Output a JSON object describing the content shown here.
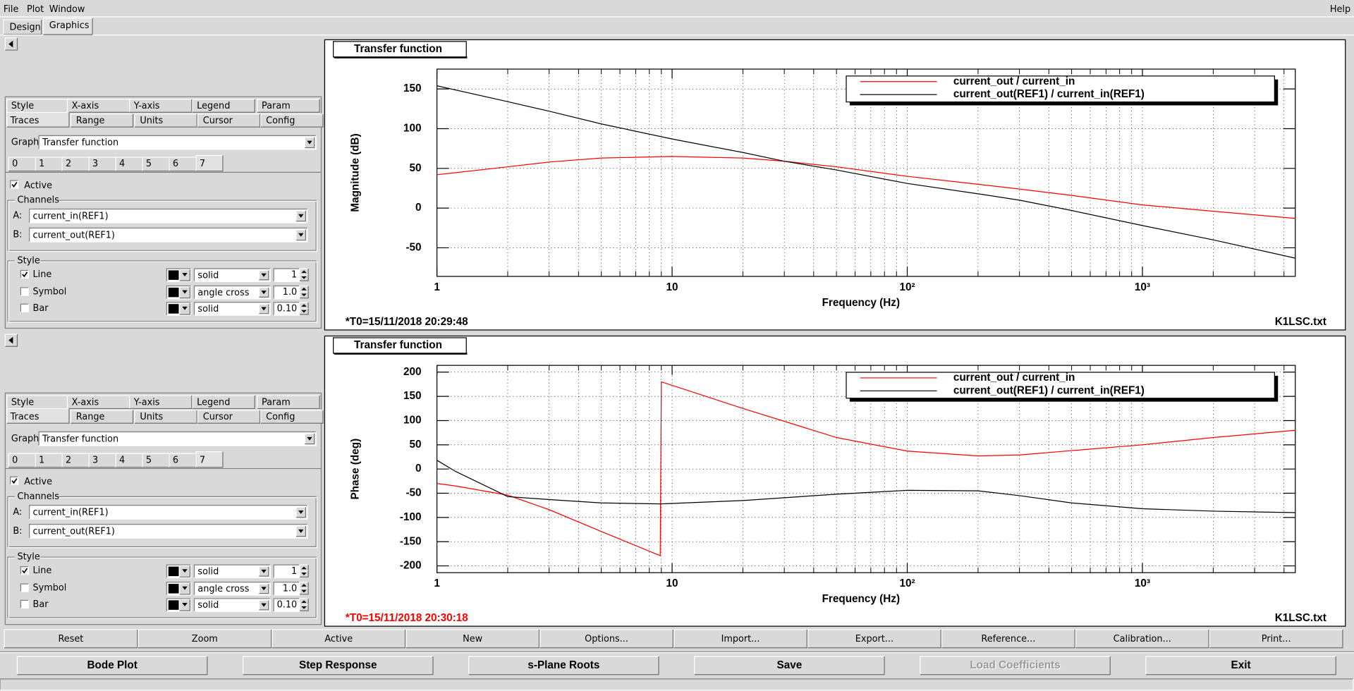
{
  "ui": {
    "menu": [
      "File",
      "Plot",
      "Window"
    ],
    "help": "Help",
    "main_tabs": [
      "Design",
      "Graphics"
    ],
    "panels": [
      {
        "tabs_row1": [
          "Style",
          "X-axis",
          "Y-axis",
          "Legend",
          "Param"
        ],
        "tabs_row2": [
          "Traces",
          "Range",
          "Units",
          "Cursor",
          "Config"
        ],
        "graph_label": "Graph:",
        "graph": "Transfer function",
        "trace_tabs": [
          "0",
          "1",
          "2",
          "3",
          "4",
          "5",
          "6",
          "7"
        ],
        "active": {
          "label": "Active",
          "checked": true
        },
        "channels_label": "Channels",
        "channels": [
          {
            "label": "A:",
            "value": "current_in(REF1)"
          },
          {
            "label": "B:",
            "value": "current_out(REF1)"
          }
        ],
        "style_label": "Style",
        "styles": [
          {
            "name": "Line",
            "checked": true,
            "kind": "solid",
            "value": "1"
          },
          {
            "name": "Symbol",
            "checked": false,
            "kind": "angle cross",
            "value": "1.0"
          },
          {
            "name": "Bar",
            "checked": false,
            "kind": "solid",
            "value": "0.10"
          }
        ]
      },
      {
        "tabs_row1": [
          "Style",
          "X-axis",
          "Y-axis",
          "Legend",
          "Param"
        ],
        "tabs_row2": [
          "Traces",
          "Range",
          "Units",
          "Cursor",
          "Config"
        ],
        "graph_label": "Graph:",
        "graph": "Transfer function",
        "trace_tabs": [
          "0",
          "1",
          "2",
          "3",
          "4",
          "5",
          "6",
          "7"
        ],
        "active": {
          "label": "Active",
          "checked": true
        },
        "channels_label": "Channels",
        "channels": [
          {
            "label": "A:",
            "value": "current_in(REF1)"
          },
          {
            "label": "B:",
            "value": "current_out(REF1)"
          }
        ],
        "style_label": "Style",
        "styles": [
          {
            "name": "Line",
            "checked": true,
            "kind": "solid",
            "value": "1"
          },
          {
            "name": "Symbol",
            "checked": false,
            "kind": "angle cross",
            "value": "1.0"
          },
          {
            "name": "Bar",
            "checked": false,
            "kind": "solid",
            "value": "0.10"
          }
        ]
      }
    ],
    "toolbar": [
      "Reset",
      "Zoom",
      "Active",
      "New",
      "Options...",
      "Import...",
      "Export...",
      "Reference...",
      "Calibration...",
      "Print..."
    ],
    "actions": [
      {
        "label": "Bode Plot",
        "enabled": true
      },
      {
        "label": "Step Response",
        "enabled": true
      },
      {
        "label": "s-Plane Roots",
        "enabled": true
      },
      {
        "label": "Save",
        "enabled": true
      },
      {
        "label": "Load Coefficients",
        "enabled": false
      },
      {
        "label": "Exit",
        "enabled": true
      }
    ]
  },
  "chart_data": [
    {
      "type": "line",
      "title": "Transfer function",
      "xlabel": "Frequency (Hz)",
      "ylabel": "Magnitude (dB)",
      "log_x": true,
      "grid": true,
      "legend": "upper right",
      "x": [
        1,
        2,
        3,
        5,
        10,
        20,
        30,
        50,
        100,
        200,
        300,
        500,
        1000,
        2000,
        4467
      ],
      "series": [
        {
          "name": "current_out / current_in",
          "color": "#ff0000",
          "values": [
            42,
            52,
            58,
            63,
            65,
            63,
            59,
            52,
            40,
            30,
            24,
            16,
            4,
            -4,
            -13
          ]
        },
        {
          "name": "current_out(REF1) / current_in(REF1)",
          "color": "#000000",
          "values": [
            154,
            134,
            122,
            106,
            87,
            70,
            59,
            48,
            31,
            18,
            10,
            -3,
            -22,
            -40,
            -63
          ]
        }
      ],
      "xlim": [
        1,
        4467
      ],
      "ylim": [
        -86,
        175
      ],
      "xticks": [
        1,
        10,
        {
          "value": 100,
          "label": "10²"
        },
        {
          "value": 1000,
          "label": "10³"
        }
      ],
      "yticks": [
        -50,
        0,
        50,
        100,
        150
      ],
      "annotations": [
        {
          "text": "*T0=15/11/2018 20:29:48",
          "color": "#000000",
          "position": "left"
        },
        {
          "text": "K1LSC.txt",
          "color": "#000000",
          "position": "right"
        }
      ]
    },
    {
      "type": "line",
      "title": "Transfer function",
      "xlabel": "Frequency (Hz)",
      "ylabel": "Phase (deg)",
      "log_x": true,
      "grid": true,
      "legend": "upper right",
      "x": [
        1,
        1.2,
        2,
        3,
        5,
        8.9,
        9,
        20,
        50,
        100,
        200,
        300,
        500,
        1000,
        2000,
        4467
      ],
      "series": [
        {
          "name": "current_out / current_in",
          "color": "#ff0000",
          "values": [
            -30,
            -35,
            -54,
            -84,
            -129,
            -179,
            180,
            125,
            65,
            37,
            27,
            29,
            38,
            50,
            65,
            80
          ]
        },
        {
          "name": "current_out(REF1) / current_in(REF1)",
          "color": "#000000",
          "values": [
            18,
            -5,
            -57,
            -63,
            -70,
            -72,
            -72,
            -65,
            -52,
            -44,
            -45,
            -55,
            -70,
            -82,
            -87,
            -90
          ]
        }
      ],
      "xlim": [
        1,
        4467
      ],
      "ylim": [
        -214,
        214
      ],
      "xticks": [
        1,
        10,
        {
          "value": 100,
          "label": "10²"
        },
        {
          "value": 1000,
          "label": "10³"
        }
      ],
      "yticks": [
        -200,
        -150,
        -100,
        -50,
        0,
        50,
        100,
        150,
        200
      ],
      "annotations": [
        {
          "text": "*T0=15/11/2018 20:30:18",
          "color": "#ff0000",
          "position": "left"
        },
        {
          "text": "K1LSC.txt",
          "color": "#000000",
          "position": "right"
        }
      ]
    }
  ]
}
